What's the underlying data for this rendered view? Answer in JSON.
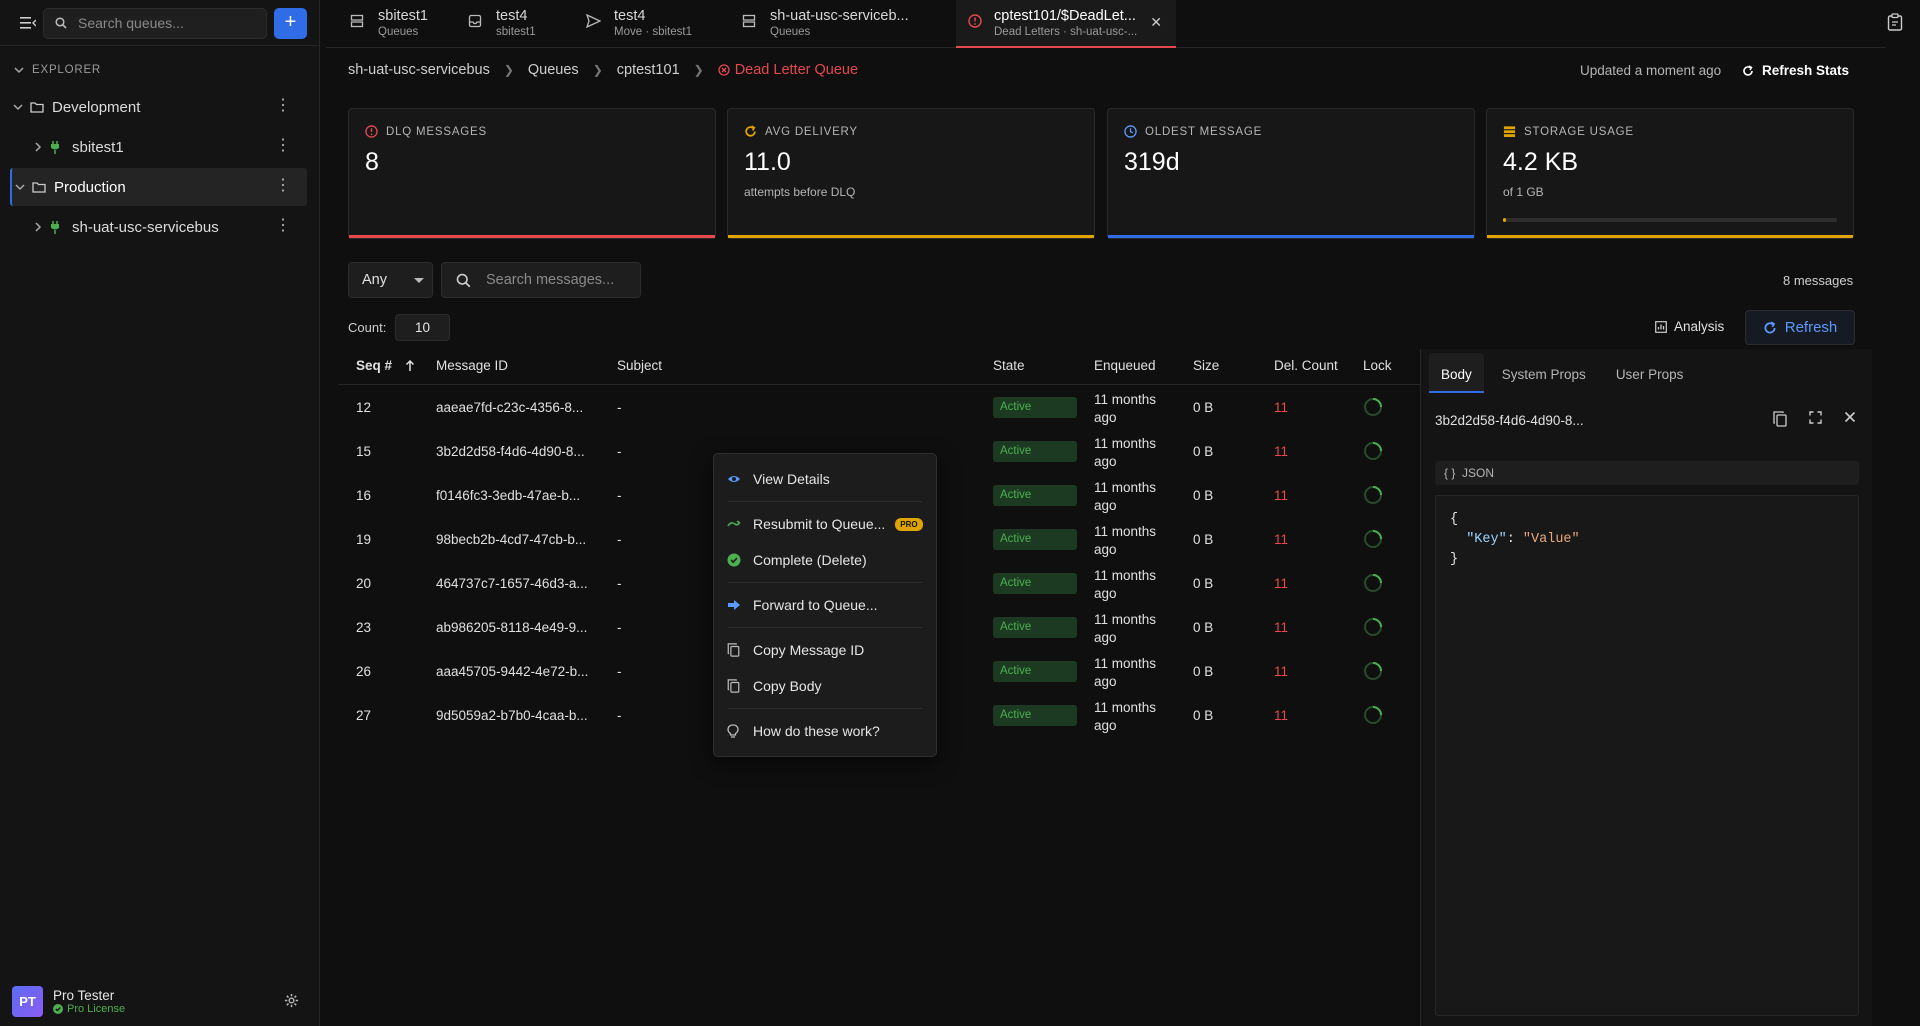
{
  "sidebar": {
    "search_placeholder": "Search queues...",
    "explorer_label": "EXPLORER",
    "tree": [
      {
        "label": "Development"
      },
      {
        "label": "sbitest1"
      },
      {
        "label": "Production"
      },
      {
        "label": "sh-uat-usc-servicebus"
      }
    ],
    "user": {
      "initials": "PT",
      "name": "Pro Tester",
      "license": "Pro License"
    }
  },
  "tabs": [
    {
      "title": "sbitest1",
      "subtitle": "Queues"
    },
    {
      "title": "test4",
      "subtitle": "sbitest1"
    },
    {
      "title": "test4",
      "subtitle": "Move · sbitest1"
    },
    {
      "title": "sh-uat-usc-serviceb...",
      "subtitle": "Queues"
    },
    {
      "title": "cptest101/$DeadLet...",
      "subtitle": "Dead Letters · sh-uat-usc-..."
    }
  ],
  "breadcrumb": [
    "sh-uat-usc-servicebus",
    "Queues",
    "cptest101",
    "Dead Letter Queue"
  ],
  "status": {
    "updated": "Updated a moment ago",
    "refresh_stats": "Refresh Stats"
  },
  "stats": [
    {
      "label": "DLQ MESSAGES",
      "value": "8",
      "sub": "",
      "color": "#e5484d"
    },
    {
      "label": "AVG DELIVERY",
      "value": "11.0",
      "sub": "attempts before DLQ",
      "color": "#e0a400"
    },
    {
      "label": "OLDEST MESSAGE",
      "value": "319d",
      "sub": "",
      "color": "#2f6ce5"
    },
    {
      "label": "STORAGE USAGE",
      "value": "4.2 KB",
      "sub": "of 1 GB",
      "color": "#e0a400",
      "usage_fraction": 4.2e-06
    }
  ],
  "filters": {
    "state": "Any",
    "search_placeholder": "Search messages...",
    "message_count": "8 messages",
    "count_label": "Count:",
    "count_value": "10"
  },
  "actions": {
    "analysis": "Analysis",
    "refresh": "Refresh"
  },
  "table": {
    "columns": [
      "Seq #",
      "Message ID",
      "Subject",
      "State",
      "Enqueued",
      "Size",
      "Del. Count",
      "Lock"
    ],
    "rows": [
      {
        "seq": "12",
        "id": "aaeae7fd-c23c-4356-8...",
        "subject": "-",
        "state": "Active",
        "enq1": "11 months",
        "enq2": "ago",
        "size": "0 B",
        "del": "11"
      },
      {
        "seq": "15",
        "id": "3b2d2d58-f4d6-4d90-8...",
        "subject": "-",
        "state": "Active",
        "enq1": "11 months",
        "enq2": "ago",
        "size": "0 B",
        "del": "11"
      },
      {
        "seq": "16",
        "id": "f0146fc3-3edb-47ae-b...",
        "subject": "-",
        "state": "Active",
        "enq1": "11 months",
        "enq2": "ago",
        "size": "0 B",
        "del": "11"
      },
      {
        "seq": "19",
        "id": "98becb2b-4cd7-47cb-b...",
        "subject": "-",
        "state": "Active",
        "enq1": "11 months",
        "enq2": "ago",
        "size": "0 B",
        "del": "11"
      },
      {
        "seq": "20",
        "id": "464737c7-1657-46d3-a...",
        "subject": "-",
        "state": "Active",
        "enq1": "11 months",
        "enq2": "ago",
        "size": "0 B",
        "del": "11"
      },
      {
        "seq": "23",
        "id": "ab986205-8118-4e49-9...",
        "subject": "-",
        "state": "Active",
        "enq1": "11 months",
        "enq2": "ago",
        "size": "0 B",
        "del": "11"
      },
      {
        "seq": "26",
        "id": "aaa45705-9442-4e72-b...",
        "subject": "-",
        "state": "Active",
        "enq1": "11 months",
        "enq2": "ago",
        "size": "0 B",
        "del": "11"
      },
      {
        "seq": "27",
        "id": "9d5059a2-b7b0-4caa-b...",
        "subject": "-",
        "state": "Active",
        "enq1": "11 months",
        "enq2": "ago",
        "size": "0 B",
        "del": "11"
      }
    ]
  },
  "detail": {
    "tabs": [
      "Body",
      "System Props",
      "User Props"
    ],
    "message_id": "3b2d2d58-f4d6-4d90-8...",
    "format": "JSON",
    "body_key": "\"Key\"",
    "body_value": "\"Value\""
  },
  "context_menu": {
    "items": [
      "View Details",
      "Resubmit to Queue...",
      "Complete (Delete)",
      "Forward to Queue...",
      "Copy Message ID",
      "Copy Body",
      "How do these work?"
    ],
    "pro_badge": "PRO"
  }
}
